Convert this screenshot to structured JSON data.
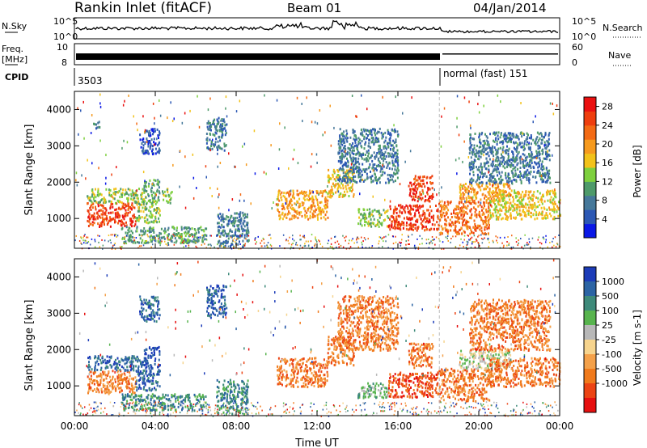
{
  "header": {
    "station": "Rankin Inlet (fitACF)",
    "beam": "Beam 01",
    "date": "04/Jan/2014"
  },
  "aux_panels": {
    "nsky_label": "N.Sky",
    "nsky_ticks": [
      "10^5",
      "10^0"
    ],
    "nsearch_label": "N.Search",
    "nsearch_ticks": [
      "10^5",
      "10^0"
    ],
    "freq_label": "Freq.",
    "freq_unit": "[MHz]",
    "freq_ticks": [
      "10",
      "8"
    ],
    "nave_label": "Nave",
    "nave_ticks": [
      "60",
      "0"
    ],
    "cpid_label": "CPID",
    "cpid_1": "3503",
    "cpid_2": "normal (fast) 151"
  },
  "colors": {
    "power": [
      "#0a18e6",
      "#2c58b4",
      "#46789a",
      "#4e9a6a",
      "#7ed03e",
      "#f2c21a",
      "#f69a1e",
      "#f36a14",
      "#ee3e0e",
      "#ea1010"
    ],
    "velocity": [
      "#1c3cb8",
      "#2c64a4",
      "#3e8a7a",
      "#58b44e",
      "#b8b8b8",
      "#f6d48e",
      "#f4a14a",
      "#f07a1c",
      "#ec4414",
      "#e61010"
    ]
  },
  "chart_data": [
    {
      "type": "heatmap",
      "title": "Power",
      "xlabel": "Time UT",
      "ylabel": "Slant Range [km]",
      "x_range_hours": [
        0,
        24
      ],
      "ylim": [
        180,
        4500
      ],
      "x_ticks": [
        "00:00",
        "04:00",
        "08:00",
        "12:00",
        "16:00",
        "20:00",
        "00:00"
      ],
      "y_ticks": [
        1000,
        2000,
        3000,
        4000
      ],
      "colorbar": {
        "label": "Power [dB]",
        "ticks": [
          4,
          8,
          12,
          16,
          20,
          24,
          28
        ],
        "range": [
          0,
          30
        ]
      },
      "regions": [
        {
          "t": [
            0.6,
            3.0
          ],
          "r": [
            800,
            1450
          ],
          "val": 25
        },
        {
          "t": [
            0.6,
            3.5
          ],
          "r": [
            1450,
            1850
          ],
          "val": 14
        },
        {
          "t": [
            3.0,
            4.2
          ],
          "r": [
            900,
            1500
          ],
          "val": 13
        },
        {
          "t": [
            3.4,
            4.2
          ],
          "r": [
            1500,
            2100
          ],
          "val": 9
        },
        {
          "t": [
            4.3,
            4.8
          ],
          "r": [
            1450,
            1850
          ],
          "val": 12
        },
        {
          "t": [
            2.3,
            6.5
          ],
          "r": [
            350,
            800
          ],
          "val": 10
        },
        {
          "t": [
            0.9,
            1.3
          ],
          "r": [
            3500,
            3700
          ],
          "val": 6
        },
        {
          "t": [
            3.2,
            4.2
          ],
          "r": [
            2800,
            3500
          ],
          "val": 5
        },
        {
          "t": [
            6.5,
            7.5
          ],
          "r": [
            2900,
            3800
          ],
          "val": 6
        },
        {
          "t": [
            7.0,
            8.6
          ],
          "r": [
            250,
            1200
          ],
          "val": 8
        },
        {
          "t": [
            10.0,
            12.5
          ],
          "r": [
            1000,
            1800
          ],
          "val": 20
        },
        {
          "t": [
            12.5,
            13.8
          ],
          "r": [
            1600,
            2400
          ],
          "val": 17
        },
        {
          "t": [
            13.0,
            16.0
          ],
          "r": [
            2000,
            3500
          ],
          "val": 8
        },
        {
          "t": [
            14.0,
            15.5
          ],
          "r": [
            800,
            1300
          ],
          "val": 12
        },
        {
          "t": [
            15.5,
            18.0
          ],
          "r": [
            700,
            1400
          ],
          "val": 24
        },
        {
          "t": [
            16.5,
            17.7
          ],
          "r": [
            1500,
            2200
          ],
          "val": 26
        },
        {
          "t": [
            18.0,
            20.5
          ],
          "r": [
            600,
            1500
          ],
          "val": 23
        },
        {
          "t": [
            19.0,
            21.5
          ],
          "r": [
            1500,
            2000
          ],
          "val": 20
        },
        {
          "t": [
            20.5,
            24.0
          ],
          "r": [
            1000,
            1800
          ],
          "val": 17
        },
        {
          "t": [
            19.5,
            23.5
          ],
          "r": [
            2000,
            3400
          ],
          "val": 8
        }
      ]
    },
    {
      "type": "heatmap",
      "title": "Velocity",
      "xlabel": "Time UT",
      "ylabel": "Slant Range [km]",
      "x_range_hours": [
        0,
        24
      ],
      "ylim": [
        180,
        4500
      ],
      "x_ticks": [
        "00:00",
        "04:00",
        "08:00",
        "12:00",
        "16:00",
        "20:00",
        "00:00"
      ],
      "y_ticks": [
        1000,
        2000,
        3000,
        4000
      ],
      "colorbar": {
        "label": "Velocity [m s-1]",
        "ticks": [
          "1000",
          "500",
          "100",
          "25",
          "-25",
          "-100",
          "-500",
          "-1000"
        ]
      },
      "regions": [
        {
          "t": [
            0.6,
            3.0
          ],
          "r": [
            800,
            1450
          ],
          "val": 7
        },
        {
          "t": [
            0.6,
            3.5
          ],
          "r": [
            1450,
            1850
          ],
          "val": 1
        },
        {
          "t": [
            3.0,
            4.2
          ],
          "r": [
            900,
            1500
          ],
          "val": 1
        },
        {
          "t": [
            3.4,
            4.2
          ],
          "r": [
            1500,
            2100
          ],
          "val": 0
        },
        {
          "t": [
            2.3,
            6.5
          ],
          "r": [
            350,
            800
          ],
          "val": 2
        },
        {
          "t": [
            3.2,
            4.2
          ],
          "r": [
            2800,
            3500
          ],
          "val": 1
        },
        {
          "t": [
            6.5,
            7.5
          ],
          "r": [
            2900,
            3800
          ],
          "val": 1
        },
        {
          "t": [
            7.0,
            8.6
          ],
          "r": [
            250,
            1200
          ],
          "val": 2
        },
        {
          "t": [
            10.0,
            12.5
          ],
          "r": [
            1000,
            1800
          ],
          "val": 7
        },
        {
          "t": [
            12.5,
            13.8
          ],
          "r": [
            1600,
            2400
          ],
          "val": 7
        },
        {
          "t": [
            13.0,
            16.0
          ],
          "r": [
            2000,
            3500
          ],
          "val": 7
        },
        {
          "t": [
            14.0,
            15.5
          ],
          "r": [
            700,
            1100
          ],
          "val": 3
        },
        {
          "t": [
            15.5,
            18.0
          ],
          "r": [
            700,
            1400
          ],
          "val": 8
        },
        {
          "t": [
            16.5,
            17.7
          ],
          "r": [
            1500,
            2200
          ],
          "val": 7
        },
        {
          "t": [
            18.0,
            20.5
          ],
          "r": [
            600,
            1500
          ],
          "val": 7
        },
        {
          "t": [
            19.0,
            21.5
          ],
          "r": [
            1500,
            2000
          ],
          "val": 4
        },
        {
          "t": [
            20.5,
            24.0
          ],
          "r": [
            1000,
            1800
          ],
          "val": 7
        },
        {
          "t": [
            19.5,
            23.5
          ],
          "r": [
            2000,
            3400
          ],
          "val": 7
        }
      ]
    }
  ]
}
